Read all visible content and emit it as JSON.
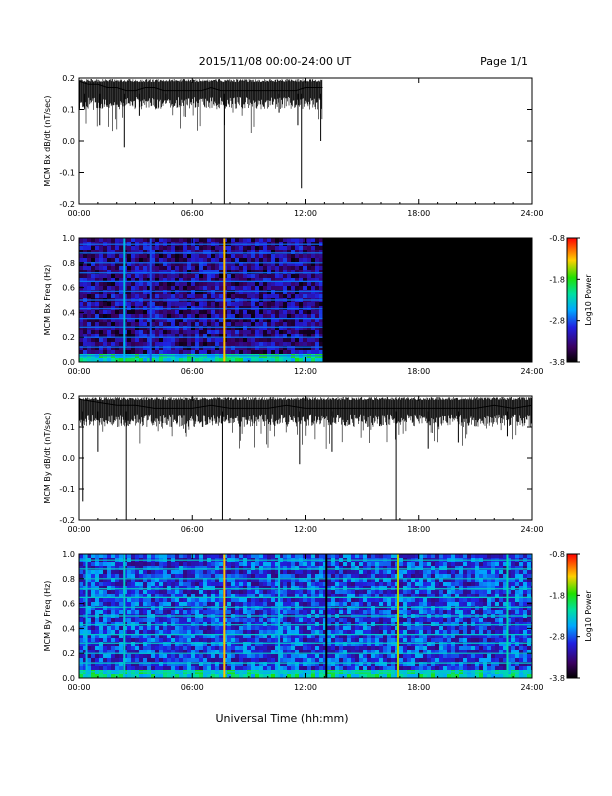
{
  "header": {
    "date_range": "2015/11/08  00:00-24:00 UT",
    "page": "Page 1/1"
  },
  "x_axis": {
    "title": "Universal Time (hh:mm)",
    "ticks": [
      "00:00",
      "06:00",
      "12:00",
      "18:00",
      "24:00"
    ]
  },
  "colors": {
    "line": "#000000",
    "no_data": "#000000"
  },
  "chart_data": [
    {
      "id": "bx-line",
      "type": "line",
      "ylabel": "MCM Bx dB/dt (nT/sec)",
      "ylim": [
        -0.2,
        0.2
      ],
      "yticks": [
        "0.2",
        "0.1",
        "0.0",
        "-0.1",
        "-0.2"
      ],
      "xlim": [
        0,
        24
      ],
      "xticks": [
        "00:00",
        "06:00",
        "12:00",
        "18:00",
        "24:00"
      ],
      "data_end_hour": 12.9,
      "x": [
        0,
        0.5,
        1,
        1.5,
        2,
        2.5,
        3,
        3.5,
        4,
        4.5,
        5,
        5.5,
        6,
        6.5,
        7,
        7.5,
        7.75,
        8,
        8.5,
        9,
        9.5,
        10,
        10.5,
        11,
        11.5,
        12,
        12.5,
        12.9
      ],
      "y": [
        0.19,
        0.18,
        0.18,
        0.17,
        0.17,
        0.16,
        0.16,
        0.17,
        0.17,
        0.16,
        0.16,
        0.16,
        0.16,
        0.16,
        0.17,
        0.16,
        0.16,
        0.16,
        0.16,
        0.16,
        0.16,
        0.16,
        0.16,
        0.16,
        0.16,
        0.17,
        0.17,
        0.17
      ],
      "spikes": [
        {
          "x": 0.3,
          "y": 0.1
        },
        {
          "x": 1.1,
          "y": 0.05
        },
        {
          "x": 2.4,
          "y": -0.02
        },
        {
          "x": 3.2,
          "y": 0.08
        },
        {
          "x": 4.6,
          "y": 0.12
        },
        {
          "x": 7.7,
          "y": -0.2
        },
        {
          "x": 10.6,
          "y": 0.09
        },
        {
          "x": 11.6,
          "y": 0.05
        },
        {
          "x": 11.8,
          "y": -0.15
        },
        {
          "x": 12.8,
          "y": 0.0
        }
      ]
    },
    {
      "id": "bx-spectrogram",
      "type": "heatmap",
      "ylabel": "MCM Bx Freq (Hz)",
      "ylim": [
        0,
        1
      ],
      "yticks": [
        "1.0",
        "0.8",
        "0.6",
        "0.4",
        "0.2",
        "0.0"
      ],
      "xlim": [
        0,
        24
      ],
      "xticks": [
        "00:00",
        "06:00",
        "12:00",
        "18:00",
        "24:00"
      ],
      "data_end_hour": 12.9,
      "colorbar_label": "Log10 Power",
      "colorbar_ticks": [
        "-0.8",
        "-1.8",
        "-2.8",
        "-3.8"
      ],
      "colorbar_range": [
        -3.8,
        -0.8
      ],
      "background_level": -3.3,
      "harmonic_lines_hz": [
        0.05,
        0.12,
        0.2,
        0.28,
        0.35,
        0.43,
        0.5,
        0.57,
        0.65,
        0.72,
        0.8,
        0.88,
        0.95
      ],
      "vertical_bursts": [
        {
          "x": 2.4,
          "level": -2.4
        },
        {
          "x": 3.8,
          "level": -2.8
        },
        {
          "x": 7.7,
          "level": -1.3
        }
      ],
      "low_freq_enhancement": {
        "max_hz": 0.08,
        "level": -2.2
      }
    },
    {
      "id": "by-line",
      "type": "line",
      "ylabel": "MCM By dB/dt (nT/sec)",
      "ylim": [
        -0.2,
        0.2
      ],
      "yticks": [
        "0.2",
        "0.1",
        "0.0",
        "-0.1",
        "-0.2"
      ],
      "xlim": [
        0,
        24
      ],
      "xticks": [
        "00:00",
        "06:00",
        "12:00",
        "18:00",
        "24:00"
      ],
      "data_end_hour": 24,
      "x": [
        0,
        1,
        2,
        3,
        4,
        5,
        6,
        7,
        8,
        9,
        10,
        11,
        12,
        13,
        14,
        15,
        16,
        17,
        18,
        19,
        20,
        21,
        22,
        23,
        24
      ],
      "y": [
        0.19,
        0.18,
        0.17,
        0.17,
        0.16,
        0.16,
        0.16,
        0.17,
        0.16,
        0.16,
        0.16,
        0.17,
        0.16,
        0.16,
        0.16,
        0.16,
        0.16,
        0.16,
        0.16,
        0.16,
        0.16,
        0.16,
        0.17,
        0.16,
        0.17
      ],
      "spikes": [
        {
          "x": 0.2,
          "y": -0.14
        },
        {
          "x": 1.0,
          "y": 0.02
        },
        {
          "x": 2.5,
          "y": -0.2
        },
        {
          "x": 7.6,
          "y": -0.2
        },
        {
          "x": 11.7,
          "y": -0.02
        },
        {
          "x": 13.4,
          "y": 0.02
        },
        {
          "x": 16.8,
          "y": -0.2
        },
        {
          "x": 18.5,
          "y": 0.03
        },
        {
          "x": 20.1,
          "y": 0.05
        },
        {
          "x": 22.7,
          "y": 0.07
        }
      ]
    },
    {
      "id": "by-spectrogram",
      "type": "heatmap",
      "ylabel": "MCM By Freq (Hz)",
      "ylim": [
        0,
        1
      ],
      "yticks": [
        "1.0",
        "0.8",
        "0.6",
        "0.4",
        "0.2",
        "0.0"
      ],
      "xlim": [
        0,
        24
      ],
      "xticks": [
        "00:00",
        "06:00",
        "12:00",
        "18:00",
        "24:00"
      ],
      "data_end_hour": 24,
      "colorbar_label": "Log10 Power",
      "colorbar_ticks": [
        "-0.8",
        "-1.8",
        "-2.8",
        "-3.8"
      ],
      "colorbar_range": [
        -3.8,
        -0.8
      ],
      "background_level": -2.9,
      "harmonic_lines_hz": [
        0.05,
        0.12,
        0.2,
        0.28,
        0.35,
        0.43,
        0.5,
        0.57,
        0.65,
        0.72,
        0.8,
        0.88,
        0.95
      ],
      "vertical_bursts": [
        {
          "x": 0.4,
          "level": -2.4
        },
        {
          "x": 2.4,
          "level": -2.3
        },
        {
          "x": 7.7,
          "level": -1.3
        },
        {
          "x": 10.6,
          "level": -2.4
        },
        {
          "x": 13.1,
          "level": -3.8
        },
        {
          "x": 16.9,
          "level": -1.5
        },
        {
          "x": 22.7,
          "level": -2.2
        }
      ],
      "low_freq_enhancement": {
        "max_hz": 0.08,
        "level": -2.2
      }
    }
  ]
}
